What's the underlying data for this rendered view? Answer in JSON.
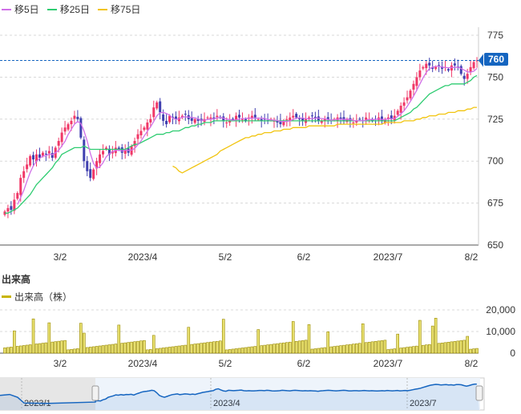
{
  "legend": [
    {
      "label": "移5日",
      "color": "#d070e8"
    },
    {
      "label": "移25日",
      "color": "#2ecc71"
    },
    {
      "label": "移75日",
      "color": "#f1c40f"
    }
  ],
  "volume_title": "出来高",
  "volume_legend": {
    "label": "出来高（株）",
    "color": "#c8b400"
  },
  "current_price": "760",
  "colors": {
    "up": "#f03868",
    "down": "#4040b0",
    "ma5": "#d070e8",
    "ma25": "#2ecc71",
    "ma75": "#f1c40f",
    "volume": "#c8b400",
    "navigator": "#1565c0"
  },
  "chart_data": {
    "type": "candlestick",
    "x_ticks": [
      "3/2",
      "2023/4",
      "5/2",
      "6/2",
      "2023/7",
      "8/2"
    ],
    "price_axis": {
      "ticks": [
        "775",
        "750",
        "725",
        "700",
        "675",
        "650"
      ],
      "ylim": [
        650,
        775
      ],
      "current": 760
    },
    "volume_axis": {
      "ticks": [
        "20,000",
        "10,000",
        "0"
      ],
      "ylim": [
        0,
        20000
      ]
    },
    "navigator_ticks": [
      "2023/1",
      "2023/4",
      "2023/7"
    ],
    "closes": [
      670,
      672,
      671,
      677,
      681,
      690,
      694,
      698,
      703,
      701,
      704,
      702,
      705,
      704,
      706,
      702,
      708,
      712,
      717,
      720,
      722,
      724,
      727,
      725,
      714,
      700,
      694,
      690,
      695,
      700,
      704,
      706,
      708,
      704,
      706,
      708,
      707,
      705,
      707,
      705,
      709,
      712,
      716,
      718,
      720,
      723,
      725,
      732,
      735,
      729,
      724,
      722,
      727,
      726,
      725,
      726,
      727,
      728,
      725,
      724,
      725,
      724,
      724,
      725,
      726,
      726,
      725,
      727,
      726,
      724,
      723,
      724,
      725,
      727,
      726,
      725,
      724,
      726,
      727,
      726,
      725,
      724,
      725,
      724,
      725,
      724,
      723,
      722,
      724,
      725,
      726,
      727,
      726,
      725,
      724,
      725,
      726,
      727,
      726,
      724,
      724,
      725,
      725,
      724,
      725,
      726,
      725,
      724,
      725,
      724,
      723,
      724,
      725,
      724,
      726,
      725,
      724,
      725,
      726,
      724,
      725,
      726,
      725,
      727,
      730,
      733,
      735,
      738,
      742,
      746,
      750,
      754,
      756,
      758,
      757,
      755,
      756,
      757,
      755,
      756,
      754,
      757,
      757,
      756,
      752,
      749,
      752,
      756,
      759,
      760
    ],
    "ma25": [
      669,
      669,
      670,
      671,
      672,
      674,
      676,
      678,
      680,
      683,
      686,
      688,
      690,
      692,
      694,
      696,
      699,
      701,
      704,
      705,
      706,
      707,
      708,
      708,
      708,
      709,
      708,
      707,
      707,
      707,
      707,
      707,
      707,
      707,
      707,
      707,
      707,
      707,
      707,
      708,
      709,
      710,
      710,
      711,
      712,
      713,
      714,
      715,
      716,
      716,
      716,
      717,
      717,
      718,
      718,
      718,
      719,
      720,
      720,
      721,
      721,
      722,
      722,
      723,
      723,
      723,
      724,
      724,
      724,
      724,
      724,
      724,
      724,
      724,
      724,
      724,
      724,
      724,
      724,
      724,
      724,
      724,
      724,
      724,
      724,
      724,
      724,
      724,
      724,
      724,
      724,
      724,
      724,
      724,
      724,
      724,
      724,
      724,
      724,
      724,
      724,
      724,
      724,
      724,
      724,
      724,
      724,
      724,
      724,
      724,
      724,
      724,
      724,
      724,
      724,
      724,
      724,
      724,
      724,
      724,
      724,
      724,
      724,
      724,
      725,
      726,
      727,
      728,
      729,
      731,
      732,
      734,
      736,
      738,
      740,
      741,
      742,
      743,
      744,
      745,
      745,
      746,
      746,
      746,
      746,
      746,
      747,
      748,
      750,
      751
    ],
    "ma75": [
      null,
      null,
      null,
      null,
      null,
      null,
      null,
      null,
      null,
      null,
      null,
      null,
      null,
      null,
      null,
      null,
      null,
      null,
      null,
      null,
      null,
      null,
      null,
      null,
      null,
      null,
      null,
      null,
      null,
      null,
      null,
      null,
      null,
      null,
      null,
      null,
      null,
      null,
      null,
      null,
      null,
      null,
      null,
      null,
      null,
      null,
      null,
      null,
      null,
      null,
      null,
      null,
      null,
      697,
      696,
      694,
      693,
      694,
      695,
      696,
      697,
      698,
      699,
      700,
      701,
      702,
      703,
      704,
      706,
      707,
      708,
      709,
      710,
      711,
      712,
      713,
      714,
      714,
      715,
      715,
      716,
      716,
      717,
      717,
      717,
      718,
      718,
      718,
      719,
      719,
      719,
      720,
      720,
      720,
      720,
      720,
      721,
      721,
      721,
      721,
      721,
      721,
      721,
      721,
      721,
      722,
      722,
      722,
      722,
      722,
      722,
      722,
      722,
      722,
      722,
      722,
      722,
      722,
      722,
      722,
      723,
      723,
      723,
      723,
      723,
      723,
      724,
      724,
      724,
      724,
      725,
      725,
      726,
      726,
      727,
      727,
      727,
      728,
      728,
      728,
      729,
      729,
      729,
      730,
      730,
      730,
      731,
      731,
      732,
      732
    ],
    "volume_scale": 20000
  }
}
